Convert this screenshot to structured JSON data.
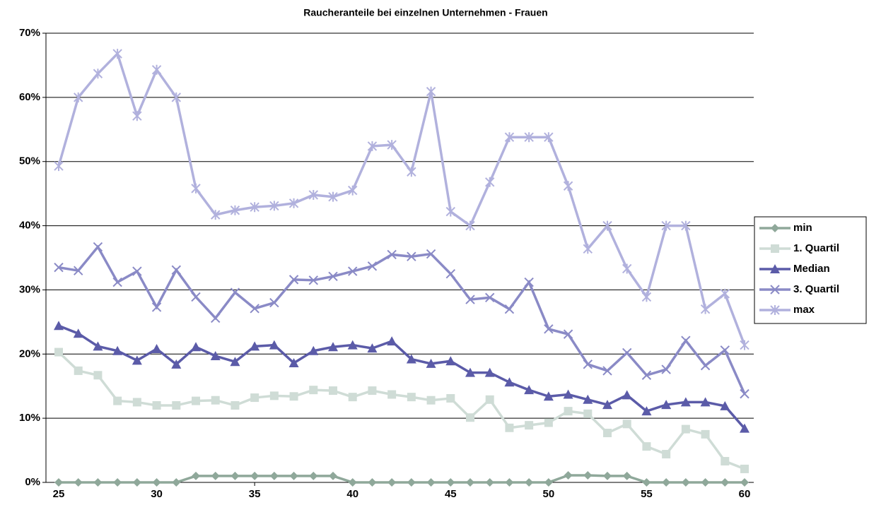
{
  "chart_data": {
    "type": "line",
    "title": "Raucheranteile bei einzelnen Unternehmen - Frauen",
    "x": [
      25,
      26,
      27,
      28,
      29,
      30,
      31,
      32,
      33,
      34,
      35,
      36,
      37,
      38,
      39,
      40,
      41,
      42,
      43,
      44,
      45,
      46,
      47,
      48,
      49,
      50,
      51,
      52,
      53,
      54,
      55,
      56,
      57,
      58,
      59,
      60
    ],
    "xlim": [
      25,
      60
    ],
    "xticks": [
      25,
      30,
      35,
      40,
      45,
      50,
      55,
      60
    ],
    "ylim": [
      0,
      70
    ],
    "yticks": [
      {
        "value": 0,
        "label": "0%"
      },
      {
        "value": 10,
        "label": "10%"
      },
      {
        "value": 20,
        "label": "20%"
      },
      {
        "value": 30,
        "label": "30%"
      },
      {
        "value": 40,
        "label": "40%"
      },
      {
        "value": 50,
        "label": "50%"
      },
      {
        "value": 60,
        "label": "60%"
      },
      {
        "value": 70,
        "label": "70%"
      }
    ],
    "grid": true,
    "legend": "right",
    "series": [
      {
        "name": "min",
        "color": "#8fa89a",
        "marker": "diamond",
        "values": [
          0,
          0,
          0,
          0,
          0,
          0,
          0,
          1,
          1,
          1,
          1,
          1,
          1,
          1,
          1,
          0,
          0,
          0,
          0,
          0,
          0,
          0,
          0,
          0,
          0,
          0,
          1.1,
          1.1,
          1,
          1,
          0,
          0,
          0,
          0,
          0,
          0
        ]
      },
      {
        "name": "1. Quartil",
        "color": "#cfdcd6",
        "marker": "square",
        "values": [
          20.3,
          17.4,
          16.7,
          12.7,
          12.5,
          12,
          12,
          12.7,
          12.8,
          12,
          13.2,
          13.5,
          13.4,
          14.4,
          14.3,
          13.3,
          14.3,
          13.7,
          13.3,
          12.8,
          13.1,
          10.1,
          12.9,
          8.5,
          8.9,
          9.3,
          11.1,
          10.7,
          7.7,
          9.1,
          5.6,
          4.4,
          8.3,
          7.5,
          3.3,
          2.1
        ]
      },
      {
        "name": "Median",
        "color": "#5b5ba8",
        "marker": "triangle",
        "values": [
          24.4,
          23.2,
          21.2,
          20.5,
          19,
          20.8,
          18.4,
          21.1,
          19.7,
          18.8,
          21.2,
          21.4,
          18.6,
          20.5,
          21.1,
          21.4,
          20.9,
          22,
          19.2,
          18.5,
          18.9,
          17.1,
          17.1,
          15.6,
          14.4,
          13.4,
          13.7,
          12.9,
          12.1,
          13.6,
          11.1,
          12.1,
          12.5,
          12.5,
          11.9,
          8.4
        ]
      },
      {
        "name": "3. Quartil",
        "color": "#8a8ac6",
        "marker": "x",
        "values": [
          33.5,
          33,
          36.7,
          31.2,
          32.9,
          27.3,
          33.1,
          28.9,
          25.6,
          29.6,
          27.1,
          28,
          31.6,
          31.5,
          32.1,
          32.9,
          33.7,
          35.5,
          35.2,
          35.6,
          32.5,
          28.5,
          28.8,
          27,
          31.2,
          23.9,
          23.1,
          18.4,
          17.4,
          20.2,
          16.7,
          17.6,
          22.1,
          18.2,
          20.6,
          13.8
        ]
      },
      {
        "name": "max",
        "color": "#b1b1dd",
        "marker": "star",
        "values": [
          49.3,
          60,
          63.7,
          66.8,
          57.1,
          64.3,
          60,
          45.8,
          41.7,
          42.4,
          42.9,
          43.1,
          43.5,
          44.8,
          44.5,
          45.5,
          52.4,
          52.6,
          48.4,
          60.9,
          42.2,
          40,
          46.8,
          53.8,
          53.8,
          53.8,
          46.2,
          36.4,
          40,
          33.3,
          28.9,
          40,
          40,
          27,
          29.4,
          21.4
        ]
      }
    ]
  }
}
